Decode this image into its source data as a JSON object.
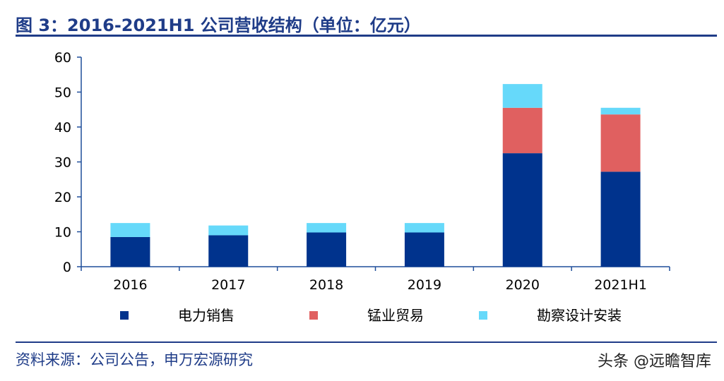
{
  "header": {
    "title": "图 3：2016-2021H1 公司营收结构（单位：亿元）"
  },
  "footer": {
    "source": "资料来源：公司公告，申万宏源研究",
    "watermark": "头条 @远瞻智库"
  },
  "colors": {
    "title": "#1f3c88",
    "axis": "#1f4e9a"
  },
  "chart_data": {
    "type": "bar",
    "stacked": true,
    "categories": [
      "2016",
      "2017",
      "2018",
      "2019",
      "2020",
      "2021H1"
    ],
    "ylim": [
      0,
      60
    ],
    "yticks": [
      0,
      10,
      20,
      30,
      40,
      50,
      60
    ],
    "xlabel": "",
    "ylabel": "",
    "legend_position": "bottom",
    "series": [
      {
        "name": "电力销售",
        "color": "#00338d",
        "values": [
          8.5,
          9.0,
          9.8,
          9.8,
          32.5,
          27.2
        ]
      },
      {
        "name": "锰业贸易",
        "color": "#e06060",
        "values": [
          0,
          0,
          0,
          0,
          13.0,
          16.4
        ]
      },
      {
        "name": "勘察设计安装",
        "color": "#66d9fa",
        "values": [
          4.0,
          2.8,
          2.7,
          2.7,
          6.8,
          1.9
        ]
      }
    ]
  }
}
